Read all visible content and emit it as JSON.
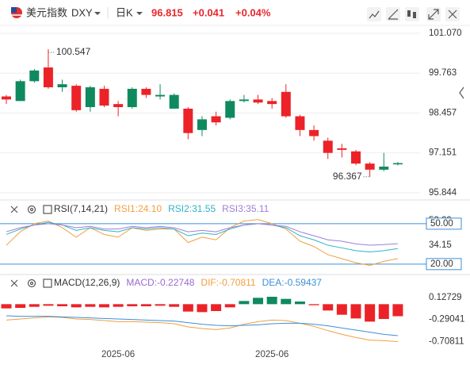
{
  "header": {
    "name": "美元指数",
    "symbol": "DXY",
    "period": "日K",
    "price": "96.815",
    "change": "+0.041",
    "change_pct": "+0.04%",
    "color": "#e8282b"
  },
  "chart_data": [
    {
      "type": "candlestick",
      "categories": [
        null,
        null,
        null,
        null,
        null,
        null,
        null,
        null,
        "2025-06",
        null,
        null,
        null,
        null,
        null,
        null,
        null,
        null,
        null,
        null,
        "2025-06",
        null,
        null,
        null,
        null,
        null,
        null,
        null,
        null,
        null
      ],
      "open": [
        99.0,
        98.85,
        99.5,
        99.95,
        99.3,
        99.35,
        98.65,
        99.25,
        98.75,
        98.65,
        99.25,
        99.0,
        98.6,
        98.6,
        97.9,
        98.35,
        98.3,
        98.85,
        98.9,
        98.85,
        99.15,
        98.35,
        97.9,
        97.55,
        97.3,
        97.2,
        96.8,
        96.6,
        96.774
      ],
      "high": [
        99.05,
        99.55,
        99.9,
        100.547,
        99.55,
        99.4,
        99.35,
        99.35,
        98.85,
        99.3,
        99.3,
        99.4,
        99.1,
        98.65,
        98.35,
        98.5,
        98.9,
        99.05,
        99.05,
        98.95,
        99.4,
        98.4,
        98.05,
        97.65,
        97.45,
        97.25,
        96.85,
        97.15,
        96.85
      ],
      "low": [
        98.75,
        98.85,
        99.45,
        99.25,
        99.15,
        98.5,
        98.5,
        98.65,
        98.35,
        98.6,
        98.95,
        98.9,
        98.6,
        97.6,
        97.7,
        98.05,
        98.25,
        98.8,
        98.75,
        98.6,
        98.3,
        97.7,
        97.55,
        96.95,
        97.0,
        96.75,
        96.367,
        96.55,
        96.74
      ],
      "close": [
        98.9,
        99.5,
        99.85,
        99.3,
        99.4,
        98.55,
        99.3,
        98.7,
        98.65,
        99.25,
        99.05,
        99.05,
        99.05,
        97.8,
        98.25,
        98.15,
        98.85,
        98.9,
        98.8,
        98.75,
        98.35,
        97.9,
        97.7,
        97.15,
        97.25,
        96.8,
        96.6,
        96.7,
        96.815
      ],
      "up_color": "#0f8a5f",
      "down_color": "#eb2328",
      "max_label": "100.547",
      "min_label": "96.367",
      "ylim": [
        95.66,
        101.38
      ],
      "yticks": [
        {
          "value": 101.07,
          "label": "101.070"
        },
        99.763,
        98.457,
        97.151,
        95.844
      ],
      "grid": true
    },
    {
      "type": "line",
      "title": "RSI(7,14,21)",
      "series": [
        {
          "name": "RSI1:24.10",
          "color": "#f0a040",
          "values": [
            34,
            44,
            50,
            52,
            47,
            40,
            47,
            42,
            40,
            47,
            45,
            46,
            46,
            36,
            40,
            38,
            47,
            52,
            53,
            50,
            46,
            37,
            33,
            27,
            24,
            21,
            19,
            22,
            24.1
          ]
        },
        {
          "name": "RSI2:31.55",
          "color": "#2fb3c8",
          "values": [
            42,
            46,
            49,
            51,
            49,
            45,
            47,
            45,
            44,
            47,
            46,
            47,
            46,
            41,
            43,
            42,
            46,
            49,
            50,
            49,
            47,
            41,
            38,
            34,
            32,
            30,
            29,
            30,
            31.55
          ]
        },
        {
          "name": "RSI3:35.11",
          "color": "#a07ed8",
          "values": [
            44,
            47,
            49,
            50,
            49,
            47,
            48,
            46,
            46,
            48,
            47,
            48,
            47,
            44,
            45,
            44,
            47,
            49,
            50,
            49,
            48,
            44,
            41,
            38,
            37,
            35,
            34,
            34.5,
            35.11
          ]
        }
      ],
      "levels": [
        {
          "value": 50,
          "label": "50.00"
        },
        {
          "value": 20,
          "label": "20.00"
        }
      ],
      "level_color": "#3d8fd9",
      "ylim": [
        14,
        57
      ],
      "yticks": [
        52.29,
        34.15
      ]
    },
    {
      "type": "macd",
      "title": "MACD(12,26,9)",
      "series": [
        {
          "name": "MACD:-0.22748",
          "kind": "bar",
          "color": "#9c6ad2",
          "up_color": "#0f8a5f",
          "down_color": "#eb2328",
          "values": [
            -0.08,
            -0.07,
            -0.05,
            -0.03,
            -0.04,
            -0.06,
            -0.05,
            -0.06,
            -0.05,
            -0.04,
            -0.04,
            -0.03,
            -0.05,
            -0.14,
            -0.15,
            -0.13,
            -0.06,
            0.06,
            0.12,
            0.14,
            0.1,
            0.05,
            -0.02,
            -0.12,
            -0.2,
            -0.27,
            -0.33,
            -0.28,
            -0.22748
          ]
        },
        {
          "name": "DIF:-0.70811",
          "kind": "line",
          "color": "#f0a040",
          "values": [
            -0.3,
            -0.28,
            -0.26,
            -0.24,
            -0.25,
            -0.28,
            -0.29,
            -0.31,
            -0.33,
            -0.33,
            -0.34,
            -0.35,
            -0.37,
            -0.43,
            -0.46,
            -0.48,
            -0.45,
            -0.38,
            -0.33,
            -0.3,
            -0.31,
            -0.36,
            -0.42,
            -0.5,
            -0.57,
            -0.63,
            -0.68,
            -0.69,
            -0.70811
          ]
        },
        {
          "name": "DEA:-0.59437",
          "kind": "line",
          "color": "#3d8fd9",
          "values": [
            -0.22,
            -0.23,
            -0.23,
            -0.23,
            -0.24,
            -0.25,
            -0.26,
            -0.27,
            -0.28,
            -0.29,
            -0.3,
            -0.31,
            -0.32,
            -0.35,
            -0.38,
            -0.4,
            -0.41,
            -0.4,
            -0.39,
            -0.37,
            -0.36,
            -0.36,
            -0.38,
            -0.41,
            -0.45,
            -0.49,
            -0.53,
            -0.57,
            -0.59437
          ]
        }
      ],
      "ylim": [
        -0.85,
        0.35
      ],
      "yticks": [
        0.12729,
        -0.29041,
        -0.70811
      ]
    }
  ]
}
